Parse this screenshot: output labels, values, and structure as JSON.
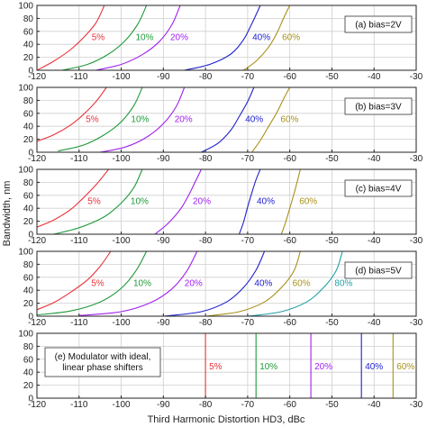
{
  "chart_data": {
    "type": "line",
    "xlabel": "Third Harmonic Distortion HD3, dBc",
    "ylabel": "Bandwidth, nm",
    "xlim": [
      -120,
      -30
    ],
    "ylim": [
      0,
      100
    ],
    "x_ticks": [
      "-120",
      "-110",
      "-100",
      "-90",
      "-80",
      "-70",
      "-60",
      "-50",
      "-40",
      "-30"
    ],
    "y_ticks": [
      "0",
      "20",
      "40",
      "60",
      "80",
      "100"
    ],
    "grid": true,
    "series_colors": {
      "5%": "#e8313a",
      "10%": "#1f9a3a",
      "20%": "#a020f0",
      "40%": "#2020d0",
      "60%": "#a89018",
      "80%": "#20a0a8"
    },
    "panels": [
      {
        "condition": "(a) bias=2V",
        "series": [
          {
            "name": "5%",
            "x": [
              -120,
              -116,
              -112,
              -109,
              -106,
              -104
            ],
            "y": [
              0,
              14,
              32,
              50,
              73,
              100
            ]
          },
          {
            "name": "10%",
            "x": [
              -114,
              -108,
              -103,
              -99,
              -96,
              -94
            ],
            "y": [
              0,
              9,
              25,
              46,
              72,
              100
            ]
          },
          {
            "name": "20%",
            "x": [
              -106,
              -100,
              -95,
              -91,
              -88,
              -86
            ],
            "y": [
              0,
              9,
              24,
              44,
              70,
              100
            ]
          },
          {
            "name": "40%",
            "x": [
              -85,
              -79,
              -74,
              -71,
              -69,
              -67
            ],
            "y": [
              0,
              9,
              25,
              47,
              72,
              100
            ]
          },
          {
            "name": "60%",
            "x": [
              -71,
              -68,
              -65,
              -63,
              -61.5,
              -60
            ],
            "y": [
              0,
              14,
              36,
              58,
              80,
              100
            ]
          }
        ]
      },
      {
        "condition": "(b) bias=3V",
        "series": [
          {
            "name": "5%",
            "x": [
              -120,
              -116,
              -112,
              -109,
              -106,
              -103.5
            ],
            "y": [
              17,
              27,
              42,
              58,
              78,
              100
            ]
          },
          {
            "name": "10%",
            "x": [
              -115,
              -109,
              -104,
              -100,
              -97,
              -95
            ],
            "y": [
              2,
              11,
              27,
              47,
              72,
              100
            ]
          },
          {
            "name": "20%",
            "x": [
              -105,
              -99,
              -94,
              -90,
              -87,
              -85
            ],
            "y": [
              0,
              8,
              23,
              44,
              70,
              100
            ]
          },
          {
            "name": "40%",
            "x": [
              -81,
              -77,
              -74,
              -72,
              -70,
              -68.5
            ],
            "y": [
              0,
              14,
              34,
              55,
              78,
              100
            ]
          },
          {
            "name": "60%",
            "x": [
              -69,
              -67,
              -65,
              -63,
              -61.5,
              -60
            ],
            "y": [
              0,
              18,
              40,
              62,
              82,
              100
            ]
          }
        ]
      },
      {
        "condition": "(c) bias=4V",
        "series": [
          {
            "name": "5%",
            "x": [
              -120,
              -116,
              -112,
              -109,
              -106,
              -103
            ],
            "y": [
              11,
              22,
              38,
              56,
              76,
              100
            ]
          },
          {
            "name": "10%",
            "x": [
              -116,
              -110,
              -104,
              -100,
              -97,
              -95
            ],
            "y": [
              0,
              10,
              27,
              48,
              72,
              100
            ]
          },
          {
            "name": "20%",
            "x": [
              -92,
              -89,
              -86,
              -84,
              -82.5,
              -81
            ],
            "y": [
              0,
              16,
              38,
              60,
              80,
              100
            ]
          },
          {
            "name": "40%",
            "x": [
              -72,
              -71,
              -70,
              -69,
              -68,
              -67
            ],
            "y": [
              0,
              18,
              42,
              64,
              84,
              100
            ]
          },
          {
            "name": "60%",
            "x": [
              -62,
              -61,
              -60,
              -59,
              -58.2,
              -57.5
            ],
            "y": [
              0,
              18,
              40,
              62,
              82,
              100
            ]
          }
        ]
      },
      {
        "condition": "(d) bias=5V",
        "series": [
          {
            "name": "5%",
            "x": [
              -120,
              -116,
              -112,
              -108,
              -105,
              -102.5
            ],
            "y": [
              10,
              21,
              37,
              56,
              77,
              100
            ]
          },
          {
            "name": "10%",
            "x": [
              -120,
              -112,
              -105,
              -100,
              -96.5,
              -94
            ],
            "y": [
              2,
              8,
              22,
              43,
              70,
              100
            ]
          },
          {
            "name": "20%",
            "x": [
              -110,
              -100,
              -93,
              -88,
              -84.5,
              -82
            ],
            "y": [
              1,
              7,
              21,
              42,
              69,
              100
            ]
          },
          {
            "name": "40%",
            "x": [
              -90,
              -81,
              -75,
              -71,
              -68,
              -66
            ],
            "y": [
              0,
              7,
              22,
              44,
              71,
              100
            ]
          },
          {
            "name": "60%",
            "x": [
              -80,
              -72,
              -66,
              -62,
              -59,
              -57.5
            ],
            "y": [
              0,
              7,
              22,
              44,
              70,
              100
            ]
          },
          {
            "name": "80%",
            "x": [
              -70,
              -62,
              -56,
              -52,
              -49,
              -47.5
            ],
            "y": [
              0,
              7,
              22,
              44,
              70,
              100
            ]
          }
        ]
      },
      {
        "condition": "(e) Modulator with ideal, linear phase shifters",
        "condition_lines": [
          "(e) Modulator with ideal,",
          "linear phase shifters"
        ],
        "series": [
          {
            "name": "5%",
            "x": [
              -80,
              -80
            ],
            "y": [
              0,
              100
            ]
          },
          {
            "name": "10%",
            "x": [
              -68,
              -68
            ],
            "y": [
              0,
              100
            ]
          },
          {
            "name": "20%",
            "x": [
              -55,
              -55
            ],
            "y": [
              0,
              100
            ]
          },
          {
            "name": "40%",
            "x": [
              -43,
              -43
            ],
            "y": [
              0,
              100
            ]
          },
          {
            "name": "60%",
            "x": [
              -35.5,
              -35.5
            ],
            "y": [
              0,
              100
            ]
          }
        ]
      }
    ]
  }
}
